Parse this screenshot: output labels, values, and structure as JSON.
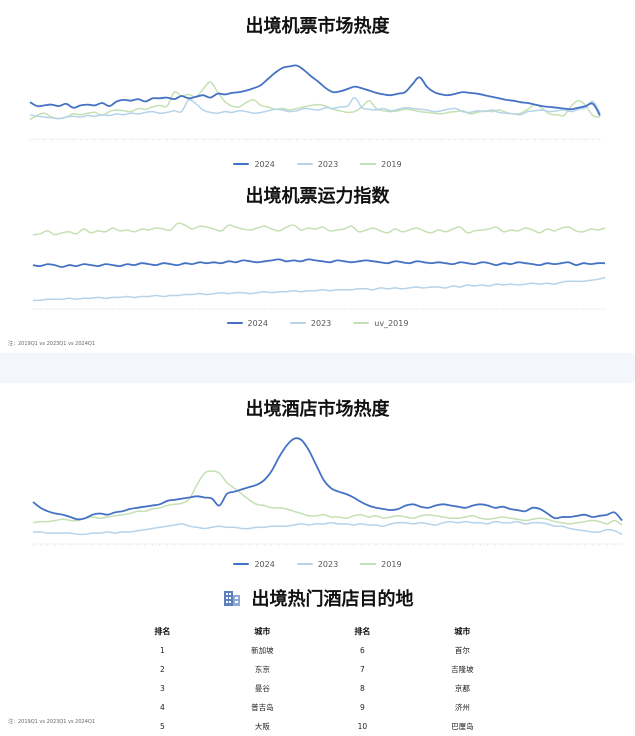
{
  "charts": {
    "flight_heat": {
      "title": "出境机票市场热度",
      "chart_data": {
        "type": "line",
        "title": "出境机票市场热度",
        "points": 80,
        "ylim": [
          0,
          100
        ],
        "grid": false,
        "legend": "bottom-center",
        "series": [
          {
            "name": "2024",
            "color": "#4472c4",
            "values": [
              42,
              37,
              38,
              39,
              37,
              40,
              35,
              38,
              39,
              38,
              41,
              37,
              43,
              45,
              44,
              46,
              43,
              47,
              47,
              48,
              46,
              50,
              47,
              49,
              51,
              48,
              53,
              52,
              54,
              55,
              57,
              60,
              64,
              72,
              80,
              86,
              88,
              89,
              83,
              75,
              68,
              60,
              55,
              56,
              59,
              62,
              60,
              57,
              54,
              52,
              51,
              53,
              55,
              65,
              74,
              62,
              55,
              52,
              51,
              53,
              55,
              54,
              53,
              51,
              49,
              47,
              45,
              44,
              42,
              41,
              39,
              37,
              36,
              35,
              34,
              33,
              35,
              37,
              40,
              25
            ]
          },
          {
            "name": "2023",
            "color": "#b6d3ea",
            "values": [
              26,
              24,
              23,
              22,
              21,
              23,
              24,
              23,
              25,
              24,
              26,
              25,
              27,
              26,
              28,
              27,
              29,
              30,
              28,
              29,
              31,
              30,
              45,
              40,
              32,
              29,
              28,
              30,
              29,
              31,
              30,
              28,
              29,
              31,
              33,
              32,
              30,
              31,
              34,
              33,
              32,
              35,
              34,
              36,
              37,
              48,
              35,
              33,
              32,
              34,
              31,
              33,
              35,
              34,
              33,
              32,
              30,
              31,
              33,
              34,
              30,
              29,
              31,
              30,
              32,
              29,
              28,
              27,
              26,
              30,
              31,
              32,
              30,
              31,
              32,
              30,
              33,
              35,
              43,
              28
            ]
          },
          {
            "name": "2019",
            "color": "#c5e0b3",
            "values": [
              20,
              25,
              28,
              23,
              21,
              23,
              27,
              26,
              28,
              29,
              25,
              30,
              32,
              31,
              30,
              34,
              33,
              36,
              38,
              37,
              55,
              50,
              52,
              49,
              59,
              68,
              55,
              43,
              37,
              36,
              42,
              45,
              38,
              36,
              33,
              34,
              32,
              34,
              36,
              38,
              39,
              37,
              33,
              31,
              29,
              30,
              36,
              44,
              34,
              31,
              30,
              31,
              33,
              32,
              30,
              29,
              28,
              27,
              29,
              30,
              31,
              27,
              29,
              31,
              30,
              32,
              29,
              27,
              28,
              33,
              39,
              34,
              27,
              26,
              25,
              37,
              44,
              38,
              25,
              23
            ]
          }
        ]
      },
      "legend": [
        "2024",
        "2023",
        "2019"
      ]
    },
    "flight_capacity": {
      "title": "出境机票运力指数",
      "chart_data": {
        "type": "line",
        "title": "出境机票运力指数",
        "points": 80,
        "ylim": [
          0,
          100
        ],
        "grid": false,
        "legend": "bottom-center",
        "series": [
          {
            "name": "2024",
            "color": "#4472c4",
            "values": [
              42,
              41,
              43,
              42,
              40,
              42,
              41,
              43,
              42,
              41,
              43,
              42,
              41,
              43,
              42,
              44,
              43,
              42,
              44,
              43,
              42,
              44,
              43,
              45,
              44,
              45,
              44,
              46,
              45,
              47,
              46,
              45,
              46,
              47,
              48,
              46,
              47,
              46,
              48,
              47,
              46,
              45,
              47,
              46,
              45,
              46,
              47,
              46,
              45,
              44,
              46,
              45,
              44,
              46,
              45,
              44,
              45,
              44,
              43,
              45,
              44,
              43,
              45,
              44,
              42,
              44,
              43,
              45,
              44,
              43,
              42,
              44,
              43,
              44,
              45,
              42,
              44,
              43,
              44,
              44
            ]
          },
          {
            "name": "2023",
            "color": "#b6d3ea",
            "values": [
              5,
              5,
              6,
              6,
              6,
              7,
              6,
              7,
              7,
              8,
              7,
              8,
              8,
              9,
              8,
              9,
              9,
              10,
              9,
              10,
              10,
              11,
              11,
              12,
              11,
              12,
              13,
              12,
              13,
              13,
              12,
              13,
              14,
              13,
              14,
              14,
              15,
              14,
              15,
              15,
              16,
              15,
              16,
              16,
              16,
              17,
              17,
              16,
              18,
              17,
              18,
              17,
              18,
              19,
              18,
              19,
              19,
              18,
              20,
              19,
              21,
              20,
              21,
              20,
              22,
              21,
              22,
              21,
              22,
              23,
              22,
              23,
              22,
              24,
              25,
              25,
              25,
              26,
              27,
              29
            ]
          },
          {
            "name": "uv_2019",
            "color": "#c5e0b3",
            "values": [
              74,
              75,
              78,
              74,
              76,
              77,
              75,
              80,
              76,
              78,
              77,
              81,
              78,
              79,
              77,
              80,
              79,
              81,
              80,
              79,
              86,
              84,
              80,
              83,
              82,
              80,
              78,
              84,
              82,
              80,
              79,
              81,
              83,
              80,
              78,
              82,
              84,
              79,
              81,
              80,
              82,
              78,
              79,
              80,
              83,
              77,
              79,
              81,
              78,
              76,
              80,
              77,
              79,
              81,
              78,
              76,
              79,
              77,
              80,
              82,
              76,
              78,
              79,
              80,
              82,
              77,
              79,
              78,
              81,
              79,
              76,
              80,
              78,
              81,
              82,
              78,
              77,
              80,
              79,
              81
            ]
          }
        ]
      },
      "legend": [
        "2024",
        "2023",
        "uv_2019"
      ],
      "note": "注：2019Q1 vs 2023Q1 vs 2024Q1"
    },
    "hotel_heat": {
      "title": "出境酒店市场热度",
      "chart_data": {
        "type": "line",
        "title": "出境酒店市场热度",
        "points": 80,
        "ylim": [
          0,
          100
        ],
        "grid": false,
        "legend": "bottom-center",
        "series": [
          {
            "name": "2024",
            "color": "#4472c4",
            "values": [
              33,
              28,
              25,
              23,
              22,
              20,
              18,
              19,
              22,
              23,
              22,
              24,
              25,
              27,
              28,
              29,
              30,
              31,
              34,
              35,
              36,
              37,
              38,
              37,
              36,
              30,
              40,
              42,
              44,
              46,
              48,
              52,
              60,
              72,
              82,
              88,
              87,
              78,
              65,
              52,
              45,
              42,
              40,
              37,
              33,
              30,
              28,
              27,
              26,
              27,
              30,
              31,
              29,
              28,
              30,
              31,
              30,
              29,
              28,
              30,
              31,
              30,
              28,
              29,
              27,
              26,
              25,
              28,
              27,
              23,
              19,
              20,
              20,
              21,
              22,
              20,
              21,
              22,
              24,
              17
            ]
          },
          {
            "name": "2023",
            "color": "#b6d3ea",
            "values": [
              7,
              7,
              6,
              6,
              6,
              6,
              5,
              5,
              6,
              6,
              7,
              6,
              7,
              7,
              8,
              9,
              10,
              11,
              12,
              13,
              14,
              12,
              11,
              10,
              11,
              12,
              11,
              11,
              10,
              10,
              11,
              11,
              12,
              12,
              12,
              13,
              14,
              13,
              14,
              14,
              15,
              14,
              14,
              13,
              14,
              13,
              13,
              12,
              14,
              15,
              15,
              14,
              15,
              14,
              13,
              15,
              16,
              15,
              16,
              15,
              15,
              14,
              16,
              15,
              15,
              16,
              14,
              15,
              15,
              14,
              12,
              12,
              10,
              9,
              8,
              7,
              7,
              9,
              8,
              5
            ]
          },
          {
            "name": "2019",
            "color": "#c5e0b3",
            "values": [
              15,
              16,
              16,
              17,
              18,
              17,
              17,
              19,
              20,
              19,
              20,
              21,
              22,
              23,
              25,
              25,
              27,
              28,
              30,
              31,
              32,
              36,
              48,
              58,
              60,
              58,
              50,
              45,
              40,
              35,
              31,
              30,
              28,
              28,
              27,
              25,
              23,
              21,
              21,
              22,
              20,
              20,
              19,
              21,
              22,
              20,
              21,
              19,
              20,
              21,
              20,
              19,
              21,
              22,
              21,
              20,
              19,
              19,
              20,
              21,
              19,
              18,
              19,
              20,
              19,
              18,
              17,
              18,
              19,
              18,
              16,
              15,
              14,
              15,
              16,
              17,
              16,
              14,
              17,
              13
            ]
          }
        ]
      },
      "legend": [
        "2024",
        "2023",
        "2019"
      ]
    }
  },
  "top_destinations": {
    "title": "出境热门酒店目的地",
    "icon": "building-icon",
    "headers": [
      "排名",
      "城市",
      "排名",
      "城市"
    ],
    "rows": [
      {
        "rank_a": "1",
        "city_a": "新加坡",
        "rank_b": "6",
        "city_b": "首尔"
      },
      {
        "rank_a": "2",
        "city_a": "东京",
        "rank_b": "7",
        "city_b": "吉隆坡"
      },
      {
        "rank_a": "3",
        "city_a": "曼谷",
        "rank_b": "8",
        "city_b": "京都"
      },
      {
        "rank_a": "4",
        "city_a": "普吉岛",
        "rank_b": "9",
        "city_b": "济州"
      },
      {
        "rank_a": "5",
        "city_a": "大阪",
        "rank_b": "10",
        "city_b": "巴厘岛"
      }
    ],
    "note": "注：2019Q1 vs 2023Q1 vs 2024Q1"
  }
}
